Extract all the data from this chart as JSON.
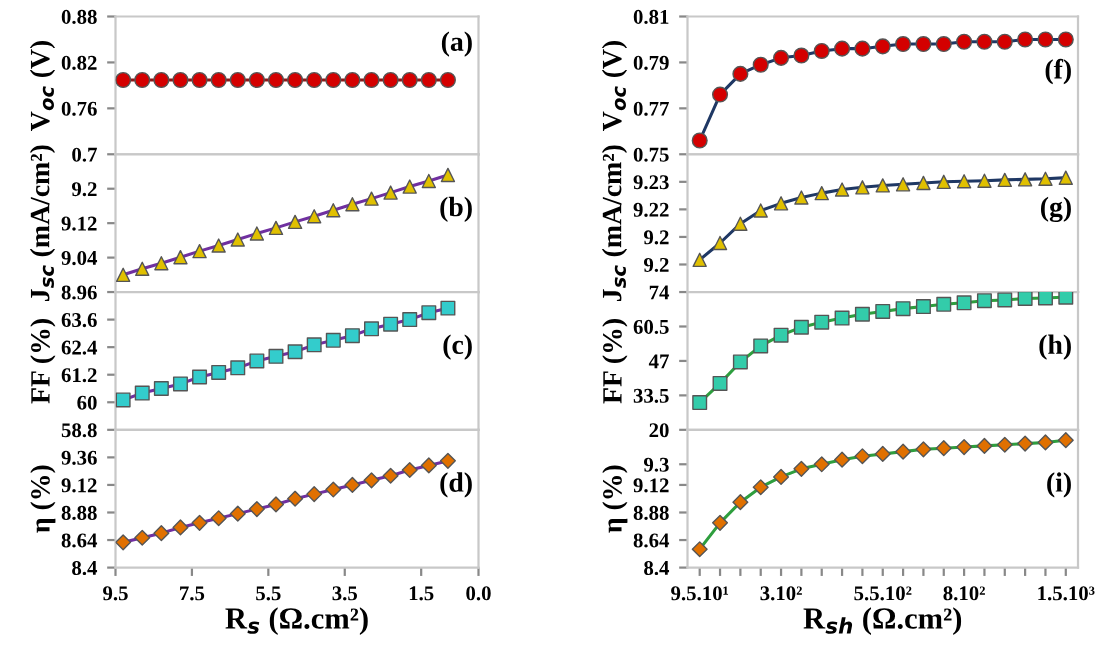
{
  "chart_data": [
    {
      "type": "line",
      "ylabel": "V$_{oc}$ (V)",
      "annotations": [
        "(a)"
      ],
      "x": [
        9.3,
        8.8,
        8.3,
        7.8,
        7.3,
        6.8,
        6.3,
        5.8,
        5.3,
        4.8,
        4.3,
        3.8,
        3.3,
        2.8,
        2.3,
        1.8,
        1.3,
        0.8
      ],
      "xlim": [
        9.5,
        0.0
      ],
      "ylim": [
        0.7,
        0.88
      ],
      "yticks": [
        0.7,
        0.76,
        0.82,
        0.88
      ],
      "marker": "circle",
      "series": [
        {
          "color": "#8b1a1a",
          "colors": [
            "#d40000",
            "#d40000",
            "#d40000",
            "#d40000",
            "#d40000",
            "#d40000",
            "#d40000",
            "#d40000",
            "#d40000",
            "#d40000",
            "#d40000",
            "#d40000",
            "#d40000",
            "#d40000",
            "#d40000",
            "#d40000",
            "#d40000",
            "#d40000"
          ],
          "values": [
            0.797,
            0.797,
            0.797,
            0.797,
            0.797,
            0.797,
            0.797,
            0.797,
            0.797,
            0.797,
            0.797,
            0.797,
            0.797,
            0.797,
            0.797,
            0.797,
            0.797,
            0.797
          ]
        }
      ]
    },
    {
      "type": "line",
      "ylabel": "J$_{sc}$ (mA/cm²)",
      "annotations": [
        "(b)"
      ],
      "x": [
        9.3,
        8.8,
        8.3,
        7.8,
        7.3,
        6.8,
        6.3,
        5.8,
        5.3,
        4.8,
        4.3,
        3.8,
        3.3,
        2.8,
        2.3,
        1.8,
        1.3,
        0.8
      ],
      "xlim": [
        9.5,
        0.0
      ],
      "ylim": [
        8.96,
        9.28
      ],
      "yticks": [
        8.96,
        9.04,
        9.12,
        9.2
      ],
      "marker": "triangle",
      "series": [
        {
          "color": "#7030a0",
          "colors": [
            "#e0c000",
            "#e0c000",
            "#e0c000",
            "#e0c000",
            "#e0c000",
            "#e0c000",
            "#e0c000",
            "#e0c000",
            "#e0c000",
            "#e0c000",
            "#e0c000",
            "#e0c000",
            "#e0c000",
            "#e0c000",
            "#e0c000",
            "#e0c000",
            "#e0c000",
            "#e0c000"
          ],
          "values": [
            9.0,
            9.014,
            9.027,
            9.041,
            9.055,
            9.068,
            9.082,
            9.096,
            9.109,
            9.123,
            9.136,
            9.15,
            9.164,
            9.177,
            9.191,
            9.205,
            9.218,
            9.232
          ]
        }
      ]
    },
    {
      "type": "line",
      "ylabel": "FF (%)",
      "annotations": [
        "(c)"
      ],
      "x": [
        9.3,
        8.8,
        8.3,
        7.8,
        7.3,
        6.8,
        6.3,
        5.8,
        5.3,
        4.8,
        4.3,
        3.8,
        3.3,
        2.8,
        2.3,
        1.8,
        1.3,
        0.8
      ],
      "xlim": [
        9.5,
        0.0
      ],
      "ylim": [
        58.8,
        64.8
      ],
      "yticks": [
        58.8,
        60,
        61.2,
        62.4,
        63.6
      ],
      "marker": "square",
      "series": [
        {
          "color": "#7030a0",
          "colors": [
            "#33cccc",
            "#33cccc",
            "#33cccc",
            "#33cccc",
            "#33cccc",
            "#33cccc",
            "#33cccc",
            "#33cccc",
            "#33cccc",
            "#33cccc",
            "#33cccc",
            "#33cccc",
            "#33cccc",
            "#33cccc",
            "#33cccc",
            "#33cccc",
            "#33cccc",
            "#33cccc"
          ],
          "values": [
            60.1,
            60.4,
            60.6,
            60.8,
            61.1,
            61.3,
            61.5,
            61.8,
            62.0,
            62.2,
            62.5,
            62.7,
            62.9,
            63.2,
            63.4,
            63.6,
            63.9,
            64.1
          ]
        }
      ]
    },
    {
      "type": "line",
      "ylabel": "η (%)",
      "xlabel": "R$_{s}$ (Ω.cm²)",
      "annotations": [
        "(d)"
      ],
      "x": [
        9.3,
        8.8,
        8.3,
        7.8,
        7.3,
        6.8,
        6.3,
        5.8,
        5.3,
        4.8,
        4.3,
        3.8,
        3.3,
        2.8,
        2.3,
        1.8,
        1.3,
        0.8
      ],
      "xlim": [
        9.5,
        0.0
      ],
      "xticks": [
        9.5,
        7.5,
        5.5,
        3.5,
        1.5,
        {
          "value": 0,
          "label": "0.0"
        }
      ],
      "ylim": [
        8.4,
        9.6
      ],
      "yticks": [
        8.4,
        8.64,
        8.88,
        9.12,
        9.36
      ],
      "marker": "diamond",
      "series": [
        {
          "color": "#7030a0",
          "colors": [
            "#e07000",
            "#e07000",
            "#e07000",
            "#e07000",
            "#e07000",
            "#e07000",
            "#e07000",
            "#e07000",
            "#e07000",
            "#e07000",
            "#e07000",
            "#e07000",
            "#e07000",
            "#e07000",
            "#e07000",
            "#e07000",
            "#e07000",
            "#e07000"
          ],
          "values": [
            8.62,
            8.66,
            8.7,
            8.75,
            8.79,
            8.83,
            8.87,
            8.91,
            8.95,
            9.0,
            9.04,
            9.08,
            9.12,
            9.16,
            9.2,
            9.25,
            9.29,
            9.33
          ]
        }
      ]
    },
    {
      "type": "line",
      "ylabel": "V$_{oc}$ (V)",
      "annotations": [
        "(f)"
      ],
      "categories": [
        null,
        null,
        null,
        null,
        null,
        null,
        null,
        null,
        null,
        null,
        null,
        null,
        null,
        null,
        null,
        null,
        null,
        null,
        null
      ],
      "ylim": [
        0.75,
        0.81
      ],
      "yticks": [
        0.75,
        0.77,
        0.79,
        0.81
      ],
      "marker": "circle",
      "series": [
        {
          "color": "#1f3864",
          "colors": [
            "#d40000",
            "#d40000",
            "#d40000",
            "#d40000",
            "#d40000",
            "#d40000",
            "#d40000",
            "#d40000",
            "#d40000",
            "#d40000",
            "#d40000",
            "#d40000",
            "#d40000",
            "#d40000",
            "#d40000",
            "#d40000",
            "#d40000",
            "#d40000",
            "#d40000"
          ],
          "values": [
            0.756,
            0.776,
            0.785,
            0.789,
            0.792,
            0.793,
            0.795,
            0.796,
            0.796,
            0.797,
            0.798,
            0.798,
            0.798,
            0.799,
            0.799,
            0.799,
            0.8,
            0.8,
            0.8
          ]
        }
      ]
    },
    {
      "type": "line",
      "ylabel": "J$_{sc}$ (mA/cm²)",
      "annotations": [
        "(g)"
      ],
      "categories": [
        null,
        null,
        null,
        null,
        null,
        null,
        null,
        null,
        null,
        null,
        null,
        null,
        null,
        null,
        null,
        null,
        null,
        null,
        null
      ],
      "ylim": [
        9.185,
        9.235
      ],
      "yticks": [
        {
          "value": 9.195,
          "label": "9.2"
        },
        {
          "value": 9.205,
          "label": "9.2"
        },
        {
          "value": 9.215,
          "label": "9.22"
        },
        {
          "value": 9.225,
          "label": "9.23"
        }
      ],
      "marker": "triangle",
      "series": [
        {
          "color": "#1f3864",
          "colors": [
            "#e0c000",
            "#e0c000",
            "#e0c000",
            "#e0c000",
            "#e0c000",
            "#e0c000",
            "#e0c000",
            "#e0c000",
            "#e0c000",
            "#e0c000",
            "#e0c000",
            "#e0c000",
            "#e0c000",
            "#e0c000",
            "#e0c000",
            "#e0c000",
            "#e0c000",
            "#e0c000",
            "#e0c000"
          ],
          "values": [
            9.1967,
            9.2028,
            9.2098,
            9.2146,
            9.2172,
            9.2193,
            9.2209,
            9.2222,
            9.223,
            9.2237,
            9.2241,
            9.2246,
            9.225,
            9.2252,
            9.2254,
            9.2257,
            9.2259,
            9.2261,
            9.2265
          ]
        }
      ]
    },
    {
      "type": "line",
      "ylabel": "FF (%)",
      "annotations": [
        "(h)"
      ],
      "categories": [
        null,
        null,
        null,
        null,
        null,
        null,
        null,
        null,
        null,
        null,
        null,
        null,
        null,
        null,
        null,
        null,
        null,
        null,
        null
      ],
      "ylim": [
        20,
        74
      ],
      "yticks": [
        20,
        33.5,
        47,
        60.5,
        74
      ],
      "marker": "square",
      "series": [
        {
          "color": "#2e9e3e",
          "colors": [
            "#33ccaa",
            "#33ccaa",
            "#33ccaa",
            "#33ccaa",
            "#33ccaa",
            "#33ccaa",
            "#33ccaa",
            "#33ccaa",
            "#33ccaa",
            "#33ccaa",
            "#33ccaa",
            "#33ccaa",
            "#33ccaa",
            "#33ccaa",
            "#33ccaa",
            "#33ccaa",
            "#33ccaa",
            "#33ccaa",
            "#33ccaa"
          ],
          "values": [
            30.7,
            38.2,
            46.6,
            52.9,
            57.1,
            60.2,
            62.2,
            63.8,
            65.3,
            66.4,
            67.5,
            68.3,
            69.2,
            69.8,
            70.6,
            70.9,
            71.5,
            71.7,
            72.0
          ]
        }
      ]
    },
    {
      "type": "line",
      "ylabel": "η (%)",
      "xlabel": "R$_{sh}$ (Ω.cm²)",
      "annotations": [
        "(i)"
      ],
      "categories": [
        "9.5.10¹",
        null,
        null,
        null,
        "3.10²",
        null,
        null,
        null,
        null,
        "5.5.10²",
        null,
        null,
        null,
        "8.10²",
        null,
        null,
        null,
        null,
        "1.5.10³"
      ],
      "ylim": [
        8.4,
        9.6
      ],
      "yticks": [
        8.4,
        8.64,
        8.88,
        9.12,
        9.3
      ],
      "marker": "diamond",
      "series": [
        {
          "color": "#2e9e3e",
          "colors": [
            "#e07000",
            "#e07000",
            "#e07000",
            "#e07000",
            "#e07000",
            "#e07000",
            "#e07000",
            "#e07000",
            "#e07000",
            "#e07000",
            "#e07000",
            "#e07000",
            "#e07000",
            "#e07000",
            "#e07000",
            "#e07000",
            "#e07000",
            "#e07000",
            "#e07000"
          ],
          "values": [
            8.56,
            8.79,
            8.97,
            9.1,
            9.19,
            9.26,
            9.3,
            9.34,
            9.37,
            9.39,
            9.41,
            9.43,
            9.44,
            9.45,
            9.46,
            9.47,
            9.48,
            9.49,
            9.51
          ]
        }
      ]
    }
  ]
}
